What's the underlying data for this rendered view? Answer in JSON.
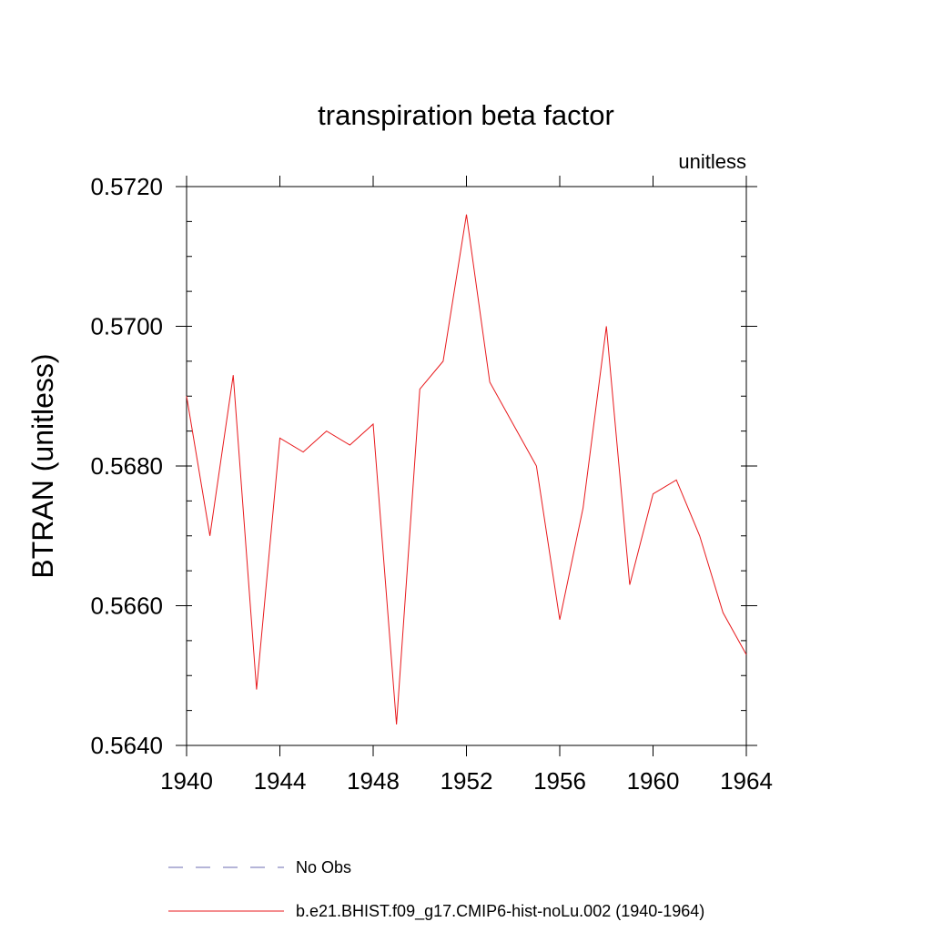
{
  "chart_data": {
    "type": "line",
    "title": "transpiration beta factor",
    "units_label": "unitless",
    "ylabel": "BTRAN  (unitless)",
    "xlabel": "",
    "xlim": [
      1940,
      1964
    ],
    "ylim": [
      0.564,
      0.572
    ],
    "x_ticks": [
      1940,
      1944,
      1948,
      1952,
      1956,
      1960,
      1964
    ],
    "y_ticks": [
      "0.5640",
      "0.5660",
      "0.5680",
      "0.5700",
      "0.5720"
    ],
    "y_tick_values": [
      0.564,
      0.566,
      0.568,
      0.57,
      0.572
    ],
    "grid": false,
    "legend_position": "bottom",
    "legend": [
      {
        "label": "No Obs",
        "style": "dashed",
        "color": "#6b6bb0"
      },
      {
        "label": "b.e21.BHIST.f09_g17.CMIP6-hist-noLu.002 (1940-1964)",
        "style": "solid",
        "color": "#e8191c"
      }
    ],
    "series": [
      {
        "name": "b.e21.BHIST.f09_g17.CMIP6-hist-noLu.002 (1940-1964)",
        "color": "#e8191c",
        "x": [
          1940,
          1941,
          1942,
          1943,
          1944,
          1945,
          1946,
          1947,
          1948,
          1949,
          1950,
          1951,
          1952,
          1953,
          1954,
          1955,
          1956,
          1957,
          1958,
          1959,
          1960,
          1961,
          1962,
          1963,
          1964
        ],
        "values": [
          0.569,
          0.567,
          0.5693,
          0.5648,
          0.5684,
          0.5682,
          0.5685,
          0.5683,
          0.5686,
          0.5643,
          0.5691,
          0.5695,
          0.5716,
          0.5692,
          0.5686,
          0.568,
          0.5658,
          0.5674,
          0.57,
          0.5663,
          0.5676,
          0.5678,
          0.567,
          0.5659,
          0.5653
        ]
      }
    ]
  }
}
